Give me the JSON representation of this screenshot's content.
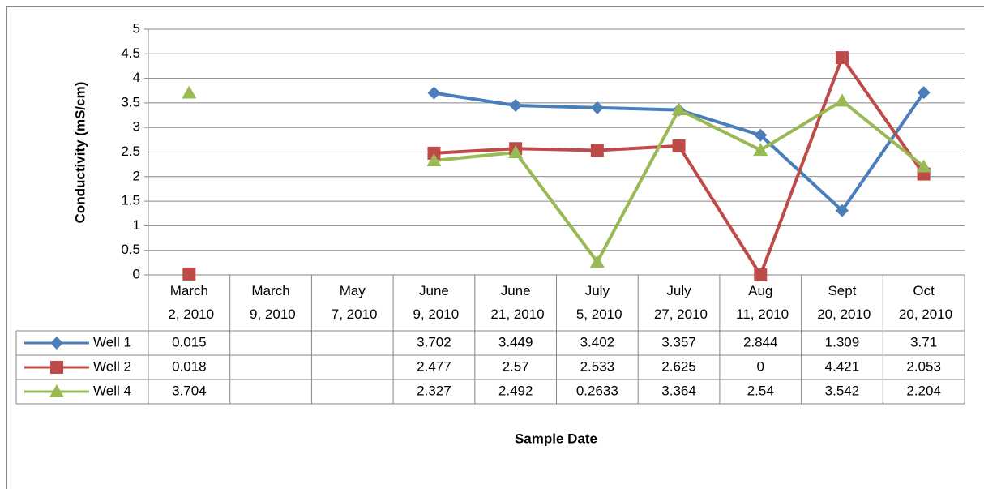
{
  "chart_data": {
    "type": "line",
    "categories": [
      "March 2, 2010",
      "March 9, 2010",
      "May 7, 2010",
      "June 9, 2010",
      "June 21, 2010",
      "July 5, 2010",
      "July 27, 2010",
      "Aug 11, 2010",
      "Sept 20, 2010",
      "Oct 20, 2010"
    ],
    "series": [
      {
        "name": "Well 1",
        "color": "#4a7ebb",
        "marker": "diamond",
        "values": [
          0.015,
          null,
          null,
          3.702,
          3.449,
          3.402,
          3.357,
          2.844,
          1.309,
          3.71
        ]
      },
      {
        "name": "Well 2",
        "color": "#be4b48",
        "marker": "square",
        "values": [
          0.018,
          null,
          null,
          2.477,
          2.57,
          2.533,
          2.625,
          0,
          4.421,
          2.053
        ]
      },
      {
        "name": "Well 4",
        "color": "#98b954",
        "marker": "triangle",
        "values": [
          3.704,
          null,
          null,
          2.327,
          2.492,
          0.2633,
          3.364,
          2.54,
          3.542,
          2.204
        ]
      }
    ],
    "ylabel": "Conductivity (mS/cm)",
    "xlabel": "Sample Date",
    "ylim": [
      0,
      5
    ],
    "yticks": [
      0,
      0.5,
      1,
      1.5,
      2,
      2.5,
      3,
      3.5,
      4,
      4.5,
      5
    ],
    "grid": true,
    "data_table": true
  }
}
